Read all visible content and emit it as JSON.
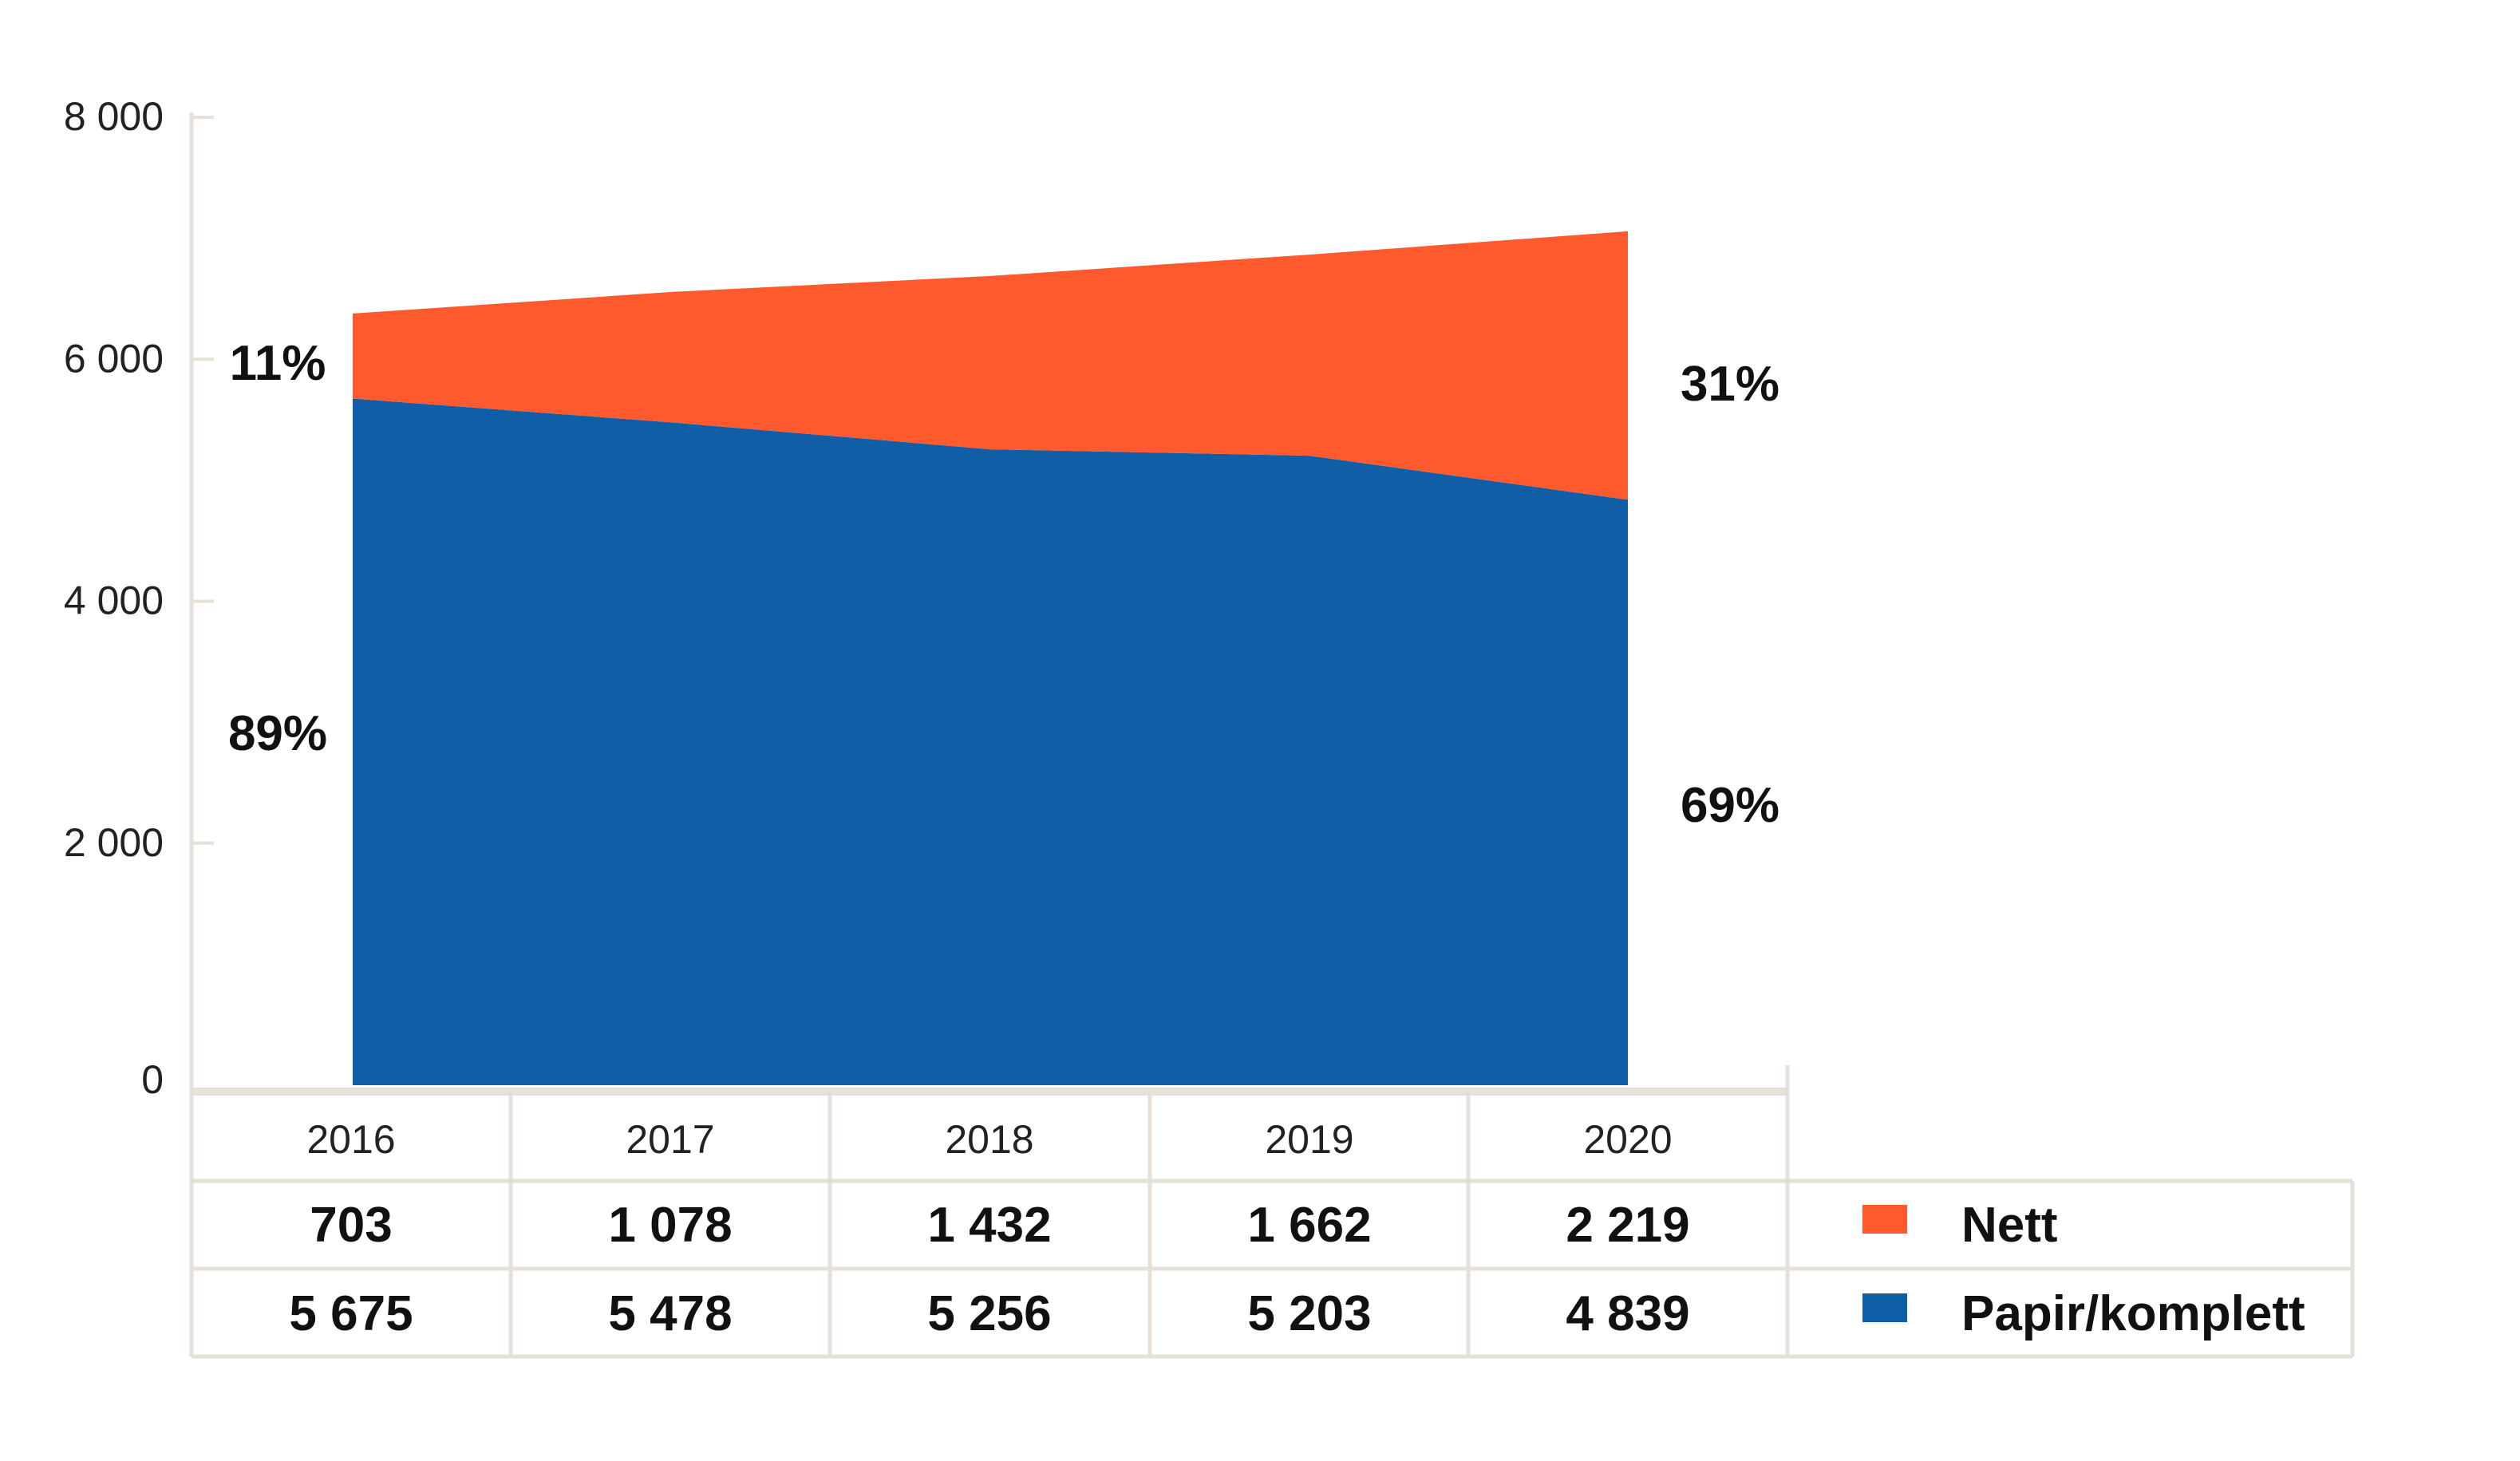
{
  "chart_data": {
    "type": "area",
    "stacked": true,
    "categories": [
      "2016",
      "2017",
      "2018",
      "2019",
      "2020"
    ],
    "series": [
      {
        "name": "Papir/komplett",
        "color": "#0f5ea6",
        "values": [
          5675,
          5478,
          5256,
          5203,
          4839
        ],
        "labels": [
          "5 675",
          "5 478",
          "5 256",
          "5 203",
          "4 839"
        ]
      },
      {
        "name": "Nett",
        "color": "#ff5a2e",
        "values": [
          703,
          1078,
          1432,
          1662,
          2219
        ],
        "labels": [
          "703",
          "1 078",
          "1 432",
          "1 662",
          "2 219"
        ]
      }
    ],
    "ylim": [
      0,
      8000
    ],
    "yticks": [
      0,
      2000,
      4000,
      6000,
      8000
    ],
    "ytick_labels": [
      "0",
      "2 000",
      "4 000",
      "6 000",
      "8 000"
    ],
    "annotations": {
      "start": {
        "nett": "11%",
        "papir": "89%"
      },
      "end": {
        "nett": "31%",
        "papir": "69%"
      }
    },
    "title": "",
    "xlabel": "",
    "ylabel": "",
    "legend_position": "right of data table",
    "grid": false,
    "frame_color": "#e5e1d8"
  }
}
